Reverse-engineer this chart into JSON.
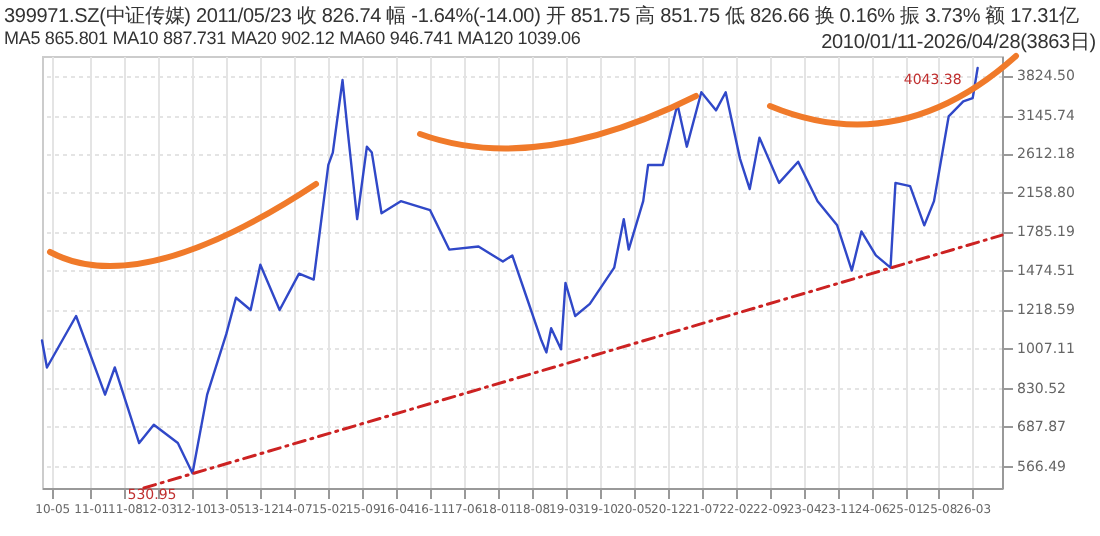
{
  "chart_data": {
    "type": "line",
    "log": true,
    "grid": true,
    "annotations": [
      "399971.SZ(中证传媒)  2011/05/23 收 826.74 幅 -1.64%(-14.00) 开 851.75 高 851.75 低 826.66 换 0.16% 振 3.73% 额 17.31亿",
      "MA5 865.801  MA10 887.731  MA20 902.12  MA60 946.741  MA120 1039.06",
      "2010/01/11-2026/04/28(3863日)",
      {
        "text": "530.95",
        "x": "2012-10",
        "y": 531
      },
      {
        "text": "4043.38",
        "x": "2026-04",
        "y": 4043
      }
    ],
    "x": [
      "2010-03",
      "2010-04",
      "2010-10",
      "2011-04",
      "2011-06",
      "2011-11",
      "2012-02",
      "2012-07",
      "2012-10",
      "2013-01",
      "2013-05",
      "2013-07",
      "2013-10",
      "2013-12",
      "2014-04",
      "2014-08",
      "2014-11",
      "2015-02",
      "2015-03",
      "2015-05",
      "2015-06",
      "2015-08",
      "2015-10",
      "2015-11",
      "2016-01",
      "2016-05",
      "2016-11",
      "2017-03",
      "2017-09",
      "2018-02",
      "2018-04",
      "2018-07",
      "2018-10",
      "2018-11",
      "2018-12",
      "2019-02",
      "2019-03",
      "2019-05",
      "2019-08",
      "2020-01",
      "2020-03",
      "2020-04",
      "2020-07",
      "2020-08",
      "2020-11",
      "2021-02",
      "2021-04",
      "2021-07",
      "2021-10",
      "2021-12",
      "2022-03",
      "2022-05",
      "2022-07",
      "2022-11",
      "2023-03",
      "2023-07",
      "2023-11",
      "2024-02",
      "2024-04",
      "2024-07",
      "2024-10",
      "2024-11",
      "2025-02",
      "2025-05",
      "2025-07",
      "2025-10",
      "2026-01",
      "2026-03",
      "2026-04"
    ],
    "series": [
      {
        "color": "#3048c8",
        "values": [
          1046,
          917,
          1179,
          803,
          917,
          634,
          693,
          634,
          547,
          803,
          1079,
          1289,
          1214,
          1515,
          1214,
          1450,
          1409,
          2466,
          2619,
          3733,
          2946,
          1892,
          2696,
          2619,
          1948,
          2066,
          1977,
          1631,
          1656,
          1538,
          1585,
          1289,
          1046,
          987,
          1111,
          1002,
          1386,
          1179,
          1251,
          1493,
          1892,
          1631,
          2066,
          2466,
          2466,
          3316,
          2696,
          3517,
          3219,
          3517,
          2540,
          2192,
          2818,
          2259,
          2505,
          2066,
          1836,
          1472,
          1782,
          1585,
          1493,
          2259,
          2224,
          1836,
          2066,
          3125,
          3364,
          3417,
          3958
        ]
      },
      {
        "type": "line",
        "color": "#cc2222",
        "line_style": "dashed",
        "x": [
          "2011-12",
          "2026-09"
        ],
        "values": [
          509,
          1750
        ]
      }
    ],
    "xlim": [
      "2010-03",
      "2026-09"
    ],
    "xticks": [
      {
        "value": "2010-05",
        "label": "10-05"
      },
      {
        "value": "2011-01",
        "label": "11-01"
      },
      {
        "value": "2011-08",
        "label": "11-08"
      },
      {
        "value": "2012-03",
        "label": "12-03"
      },
      {
        "value": "2012-10",
        "label": "12-10"
      },
      {
        "value": "2013-05",
        "label": "13-05"
      },
      {
        "value": "2013-12",
        "label": "13-12"
      },
      {
        "value": "2014-07",
        "label": "14-07"
      },
      {
        "value": "2015-02",
        "label": "15-02"
      },
      {
        "value": "2015-09",
        "label": "15-09"
      },
      {
        "value": "2016-04",
        "label": "16-04"
      },
      {
        "value": "2016-11",
        "label": "16-11"
      },
      {
        "value": "2017-06",
        "label": "17-06"
      },
      {
        "value": "2018-01",
        "label": "18-01"
      },
      {
        "value": "2018-08",
        "label": "18-08"
      },
      {
        "value": "2019-03",
        "label": "19-03"
      },
      {
        "value": "2019-10",
        "label": "19-10"
      },
      {
        "value": "2020-05",
        "label": "20-05"
      },
      {
        "value": "2020-12",
        "label": "20-12"
      },
      {
        "value": "2021-07",
        "label": "21-07"
      },
      {
        "value": "2022-02",
        "label": "22-02"
      },
      {
        "value": "2022-09",
        "label": "22-09"
      },
      {
        "value": "2023-04",
        "label": "23-04"
      },
      {
        "value": "2023-11",
        "label": "23-11"
      },
      {
        "value": "2024-06",
        "label": "24-06"
      },
      {
        "value": "2025-01",
        "label": "25-01"
      },
      {
        "value": "2025-08",
        "label": "25-08"
      },
      {
        "value": "2026-03",
        "label": "26-03"
      }
    ],
    "ylim": [
      509,
      4198
    ],
    "yticks": [
      566.49,
      687.87,
      830.52,
      1007.11,
      1218.59,
      1474.51,
      1785.19,
      {
        "value": 2158.8,
        "label": "2158.80"
      },
      2612.18,
      3145.74,
      {
        "value": 3824.5,
        "label": "3824.50"
      }
    ]
  }
}
